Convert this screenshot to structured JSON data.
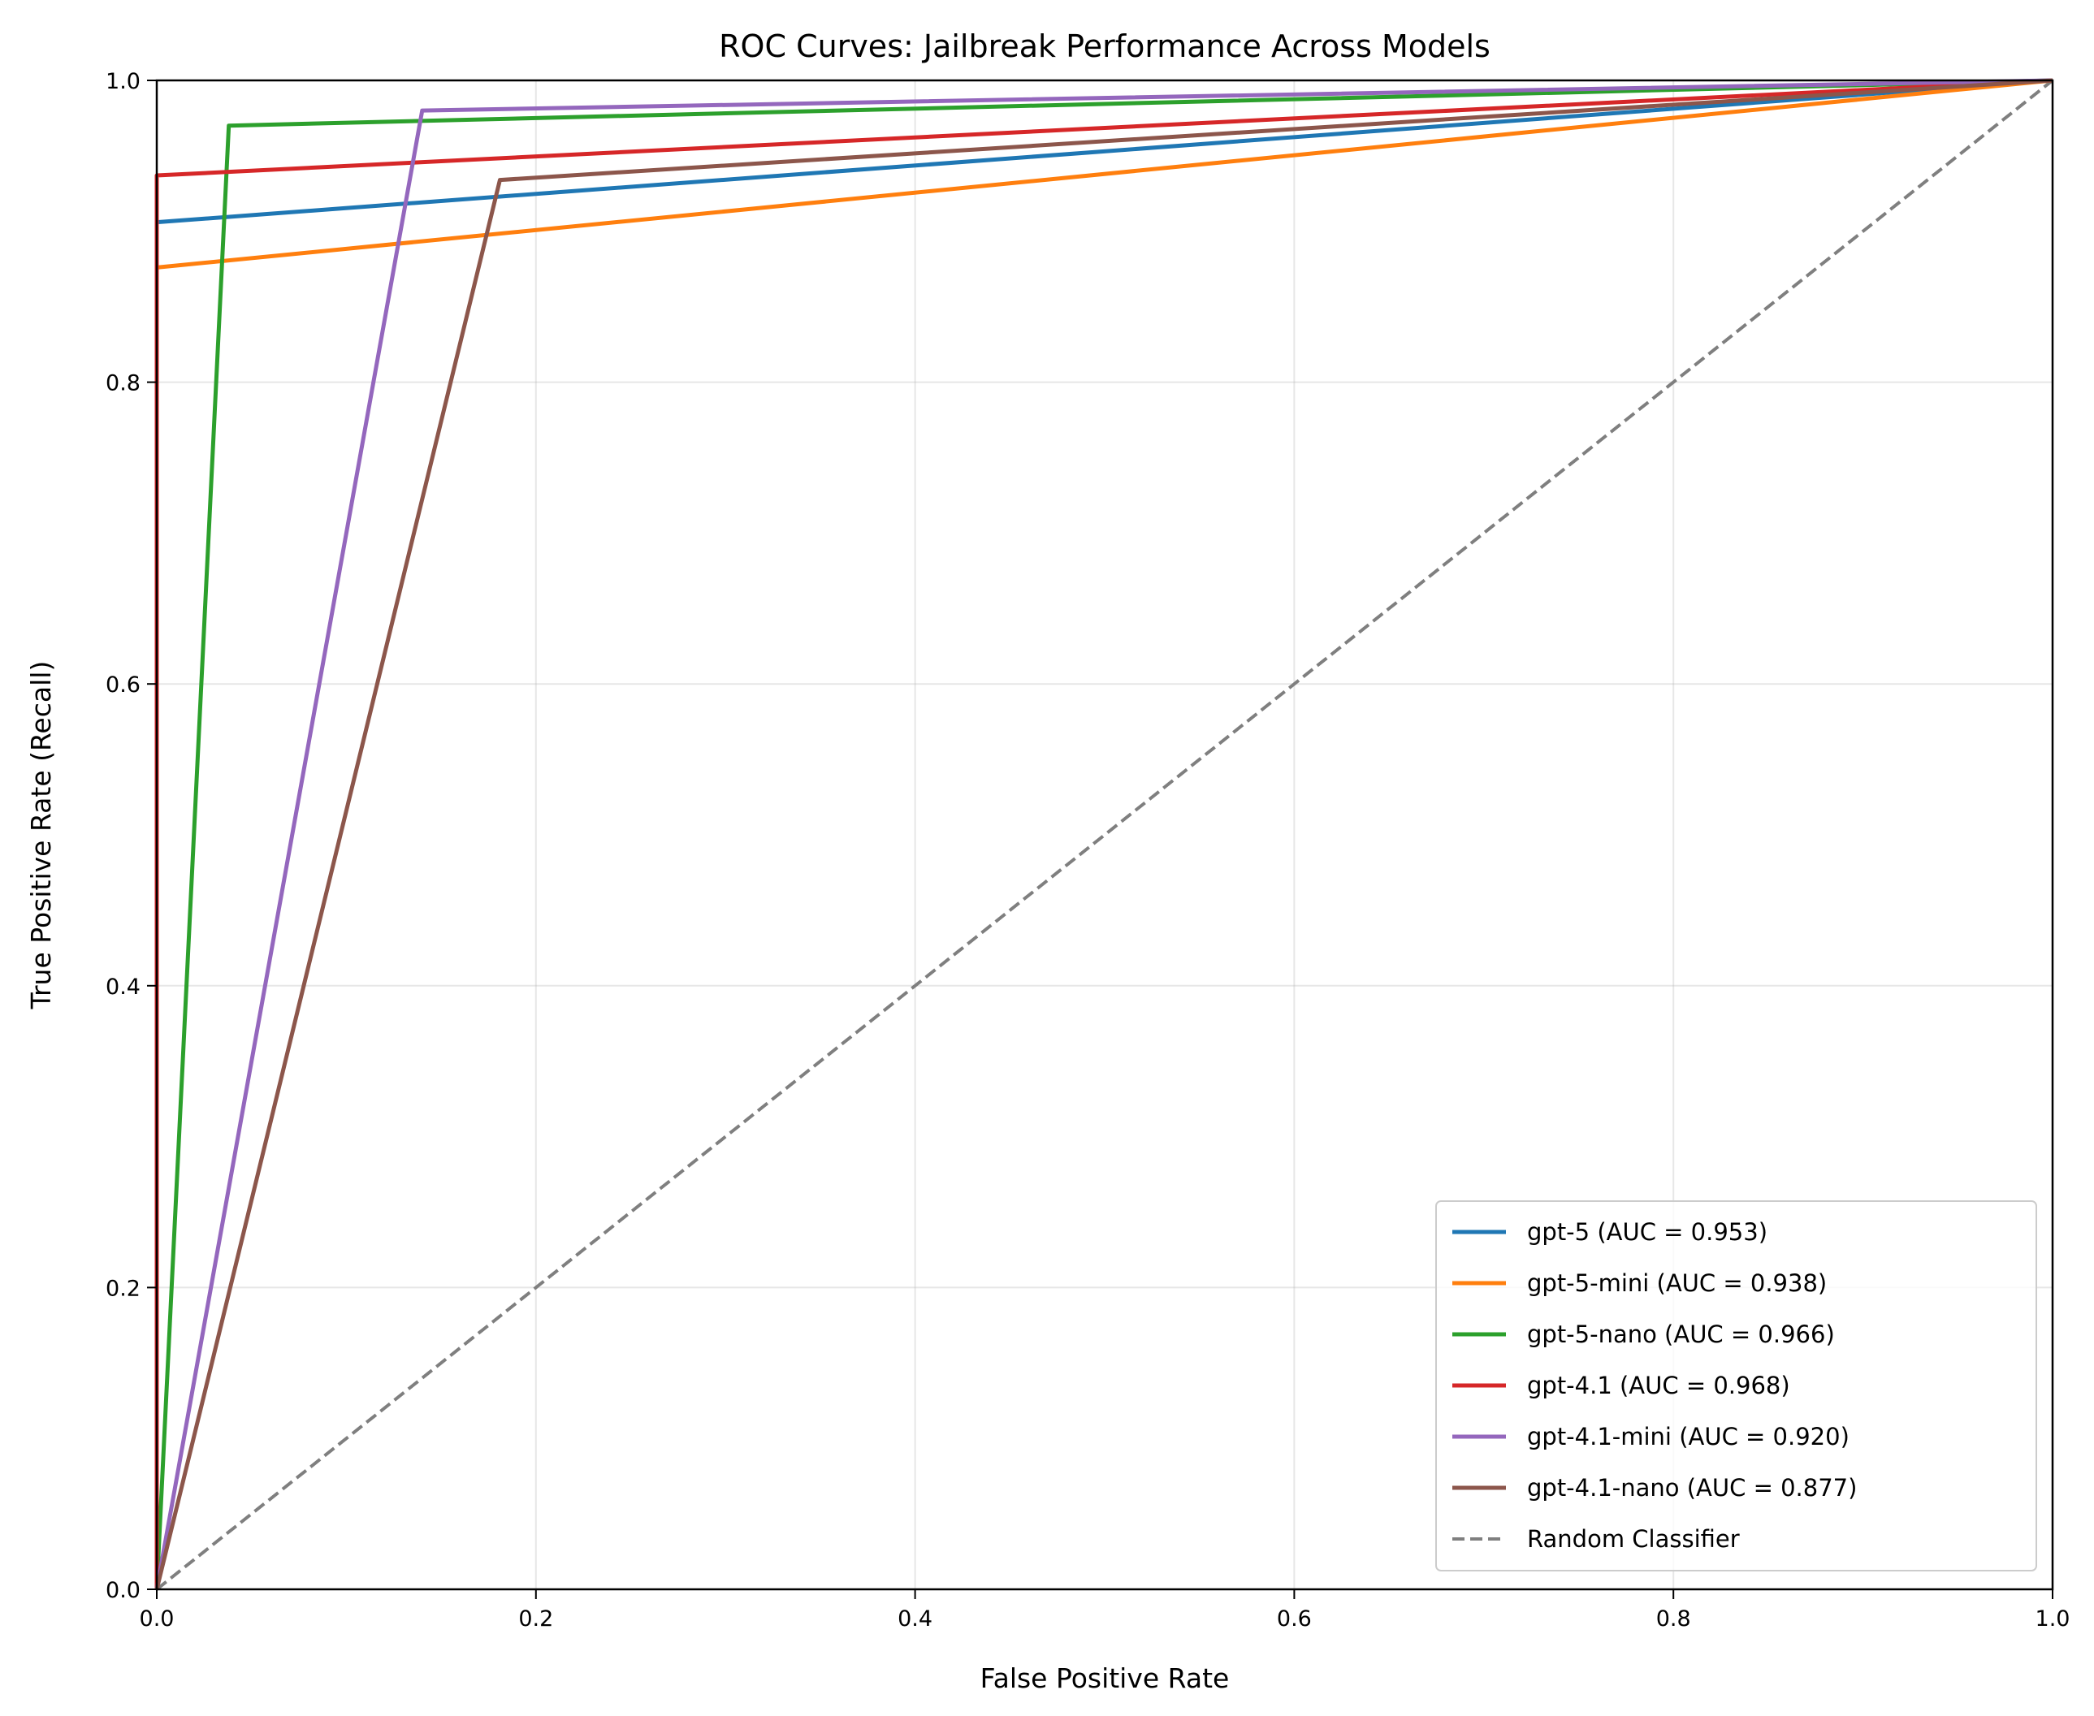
{
  "chart_data": {
    "type": "line",
    "title": "ROC Curves: Jailbreak Performance Across Models",
    "xlabel": "False Positive Rate",
    "ylabel": "True Positive Rate (Recall)",
    "xlim": [
      0,
      1
    ],
    "ylim": [
      0,
      1
    ],
    "xticks": [
      "0.0",
      "0.2",
      "0.4",
      "0.6",
      "0.8",
      "1.0"
    ],
    "yticks": [
      "0.0",
      "0.2",
      "0.4",
      "0.6",
      "0.8",
      "1.0"
    ],
    "grid": true,
    "legend_position": "bottom-right",
    "series": [
      {
        "name": "gpt-5 (AUC = 0.953)",
        "color": "#1f77b4",
        "x": [
          0,
          0,
          1
        ],
        "y": [
          0,
          0.906,
          1
        ]
      },
      {
        "name": "gpt-5-mini (AUC = 0.938)",
        "color": "#ff7f0e",
        "x": [
          0,
          0,
          1
        ],
        "y": [
          0,
          0.876,
          1
        ]
      },
      {
        "name": "gpt-5-nano (AUC = 0.966)",
        "color": "#2ca02c",
        "x": [
          0,
          0.038,
          1
        ],
        "y": [
          0,
          0.97,
          1
        ]
      },
      {
        "name": "gpt-4.1 (AUC = 0.968)",
        "color": "#d62728",
        "x": [
          0,
          0,
          1
        ],
        "y": [
          0,
          0.937,
          1
        ]
      },
      {
        "name": "gpt-4.1-mini (AUC = 0.920)",
        "color": "#9467bd",
        "x": [
          0,
          0.14,
          1
        ],
        "y": [
          0,
          0.98,
          1
        ]
      },
      {
        "name": "gpt-4.1-nano (AUC = 0.877)",
        "color": "#8c564b",
        "x": [
          0,
          0.181,
          1
        ],
        "y": [
          0,
          0.934,
          1
        ]
      },
      {
        "name": "Random Classifier",
        "color": "#7f7f7f",
        "dashed": true,
        "x": [
          0,
          1
        ],
        "y": [
          0,
          1
        ]
      }
    ]
  }
}
